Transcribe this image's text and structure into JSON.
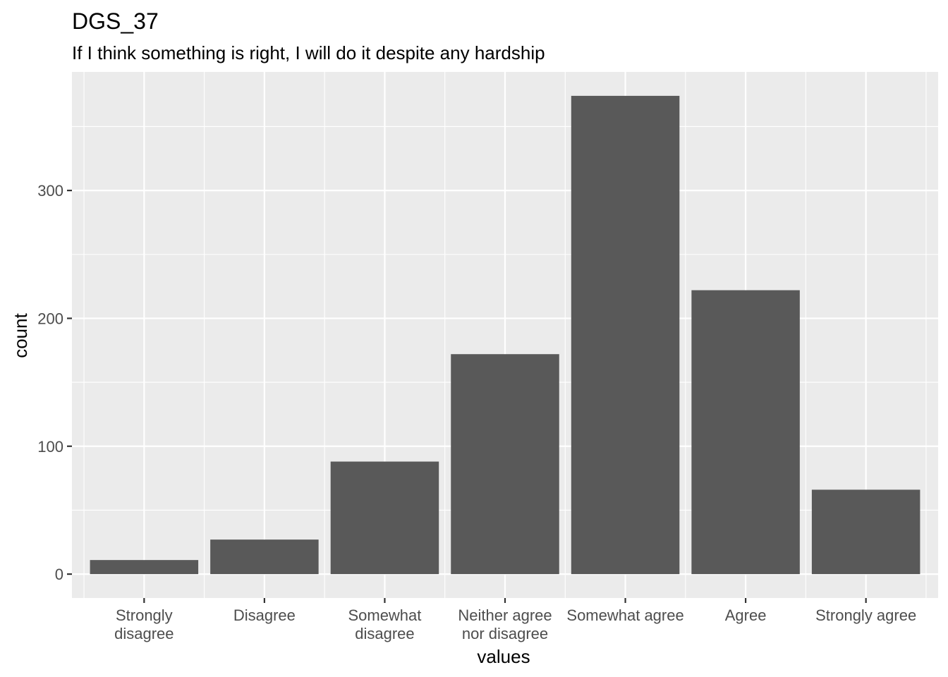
{
  "chart_data": {
    "type": "bar",
    "title": "DGS_37",
    "subtitle": "If I think something is right, I will do it despite any hardship",
    "xlabel": "values",
    "ylabel": "count",
    "categories": [
      "Strongly disagree",
      "Disagree",
      "Somewhat disagree",
      "Neither agree nor disagree",
      "Somewhat agree",
      "Agree",
      "Strongly agree"
    ],
    "category_label_lines": [
      [
        "Strongly",
        "disagree"
      ],
      [
        "Disagree"
      ],
      [
        "Somewhat",
        "disagree"
      ],
      [
        "Neither agree",
        "nor disagree"
      ],
      [
        "Somewhat agree"
      ],
      [
        "Agree"
      ],
      [
        "Strongly agree"
      ]
    ],
    "values": [
      11,
      27,
      88,
      172,
      374,
      222,
      66
    ],
    "ylim": [
      -18.7,
      392.7
    ],
    "y_ticks": [
      0,
      100,
      200,
      300
    ],
    "y_minor_ticks": [
      50,
      150,
      250,
      350
    ],
    "bar_color": "#595959",
    "panel_color": "#ebebeb",
    "grid": true,
    "legend": "none"
  }
}
